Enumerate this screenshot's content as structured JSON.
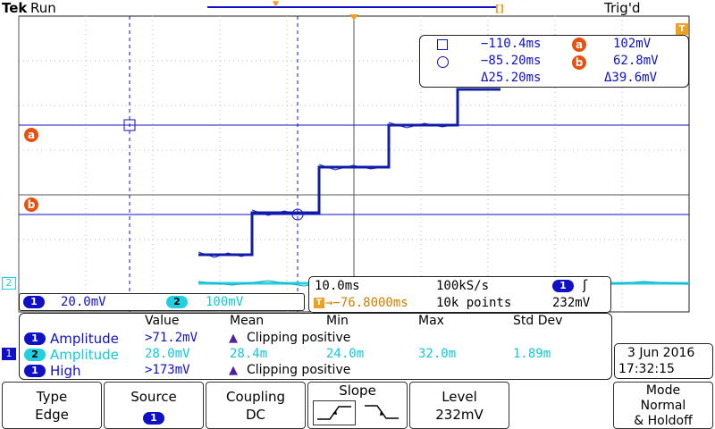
{
  "header": {
    "brand": "Tek",
    "run_state": "Run",
    "trigger_state": "Trig'd"
  },
  "cursors": {
    "square_time": "−110.4ms",
    "circle_time": "−85.20ms",
    "delta_time": "Δ25.20ms",
    "a_label": "a",
    "a_value": "102mV",
    "b_label": "b",
    "b_value": "62.8mV",
    "delta_value": "Δ39.6mV"
  },
  "channels": {
    "ch1_num": "1",
    "ch1_scale": "20.0mV",
    "ch2_num": "2",
    "ch2_scale": "100mV"
  },
  "timebase": {
    "per_div": "10.0ms",
    "sample_rate": "100kS/s",
    "trigger_pos": "→−76.8000ms",
    "record_length": "10k points",
    "trig_chip": "1",
    "trig_slope_glyph": "ʃ",
    "trig_level": "232mV"
  },
  "measurements": {
    "headers": [
      "Value",
      "Mean",
      "Min",
      "Max",
      "Std Dev"
    ],
    "rows": [
      {
        "src": "1",
        "name": "Amplitude",
        "value": ">71.2mV",
        "mean": "Clipping positive",
        "min": "",
        "max": "",
        "std": ""
      },
      {
        "src": "2",
        "name": "Amplitude",
        "value": "28.0mV",
        "mean": "28.4m",
        "min": "24.0m",
        "max": "32.0m",
        "std": "1.89m"
      },
      {
        "src": "1",
        "name": "High",
        "value": ">173mV",
        "mean": "Clipping positive",
        "min": "",
        "max": "",
        "std": ""
      }
    ]
  },
  "datetime": {
    "date": "3 Jun 2016",
    "time": "17:32:15"
  },
  "menu": {
    "type_label": "Type",
    "type_value": "Edge",
    "source_label": "Source",
    "source_value": "1",
    "coupling_label": "Coupling",
    "coupling_value": "DC",
    "slope_label": "Slope",
    "level_label": "Level",
    "level_value": "232mV",
    "mode_label": "Mode",
    "mode_value1": "Normal",
    "mode_value2": "& Holdoff"
  },
  "markers": {
    "ch1_ground": "1",
    "ch2_ground": "2",
    "trigger_level_marker": "T",
    "cursor_a": "a",
    "cursor_b": "b"
  },
  "colors": {
    "ch1": "#1010c8",
    "ch2": "#20d0e0",
    "cursor_badge": "#e85010",
    "trigger": "#f0a020"
  }
}
